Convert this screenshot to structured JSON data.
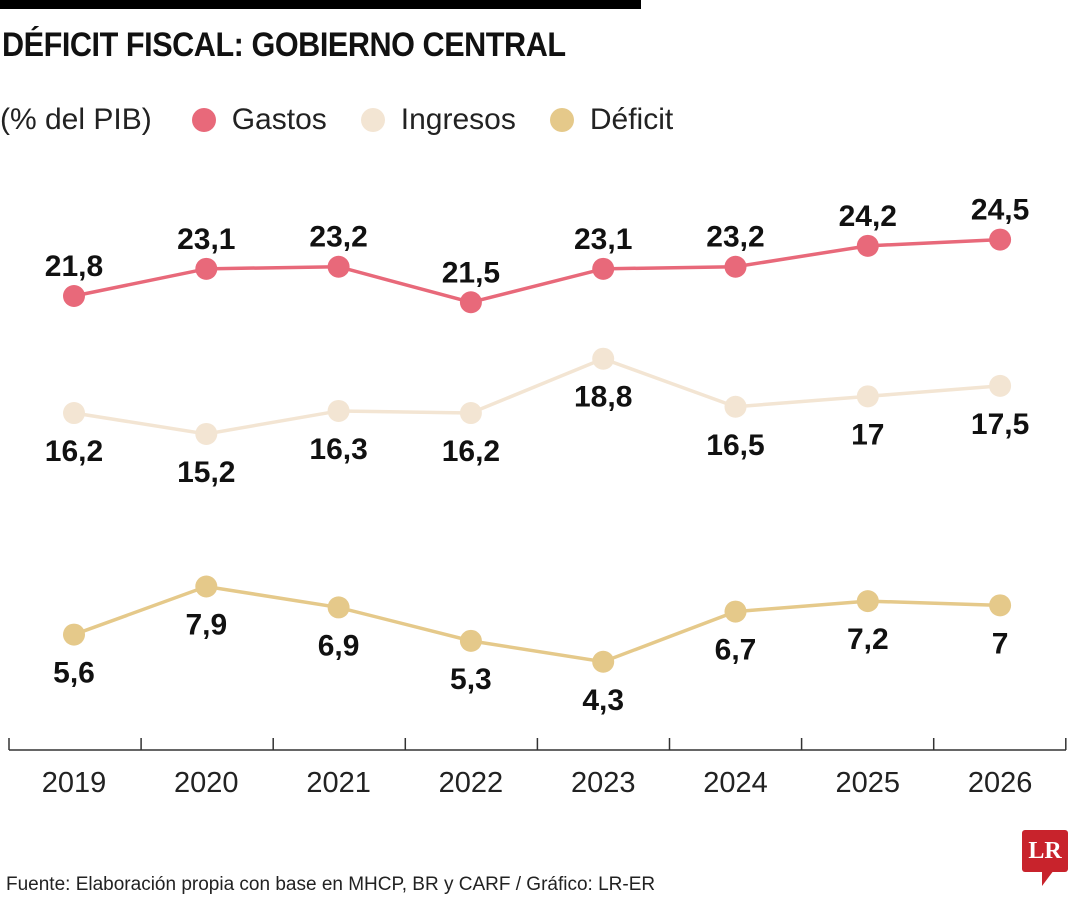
{
  "chart_data": {
    "type": "line",
    "title": "DÉFICIT FISCAL: GOBIERNO CENTRAL",
    "subtitle": "(% del PIB)",
    "categories": [
      "2019",
      "2020",
      "2021",
      "2022",
      "2023",
      "2024",
      "2025",
      "2026"
    ],
    "series": [
      {
        "name": "Gastos",
        "color": "#E8697A",
        "values": [
          21.8,
          23.1,
          23.2,
          21.5,
          23.1,
          23.2,
          24.2,
          24.5
        ],
        "labels": [
          "21,8",
          "23,1",
          "23,2",
          "21,5",
          "23,1",
          "23,2",
          "24,2",
          "24,5"
        ],
        "label_position": "above"
      },
      {
        "name": "Ingresos",
        "color": "#F3E5D3",
        "values": [
          16.2,
          15.2,
          16.3,
          16.2,
          18.8,
          16.5,
          17,
          17.5
        ],
        "labels": [
          "16,2",
          "15,2",
          "16,3",
          "16,2",
          "18,8",
          "16,5",
          "17",
          "17,5"
        ],
        "label_position": "below"
      },
      {
        "name": "Déficit",
        "color": "#E5C98A",
        "values": [
          5.6,
          7.9,
          6.9,
          5.3,
          4.3,
          6.7,
          7.2,
          7
        ],
        "labels": [
          "5,6",
          "7,9",
          "6,9",
          "5,3",
          "4,3",
          "6,7",
          "7,2",
          "7"
        ],
        "label_position": "below"
      }
    ],
    "grid": false,
    "legend": "top-left"
  },
  "source": "Fuente: Elaboración propia con base en MHCP, BR y CARF / Gráfico: LR-ER",
  "logo": "LR"
}
